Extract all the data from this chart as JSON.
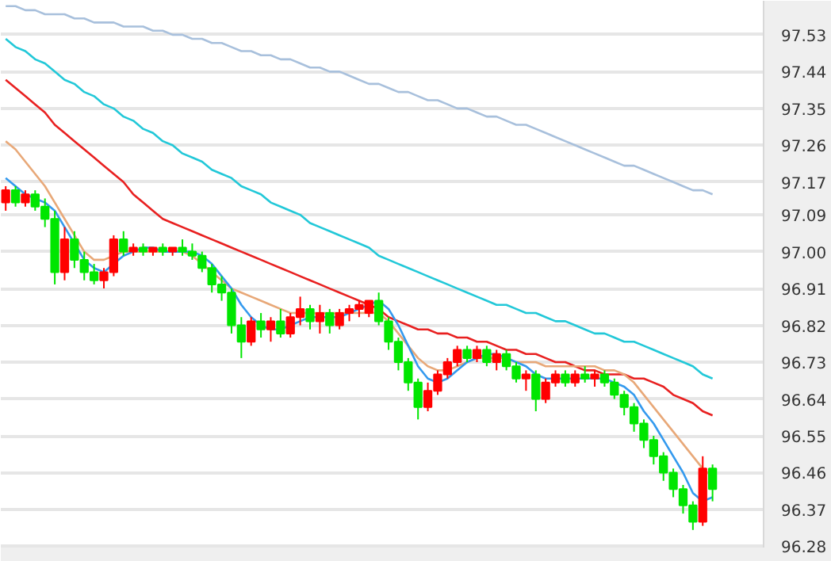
{
  "chart_data": {
    "type": "candlestick",
    "categories": [
      null,
      null,
      null,
      null,
      null,
      null,
      null,
      null,
      null,
      null,
      null,
      null,
      null,
      null,
      null,
      null,
      null,
      null,
      null,
      null,
      null,
      null,
      null,
      null,
      null,
      null,
      null,
      null,
      null,
      null,
      null,
      null,
      null,
      null,
      null,
      null,
      null,
      null,
      null,
      null,
      null,
      null,
      null,
      null,
      null,
      null,
      null,
      null,
      null,
      null,
      null,
      null,
      null,
      null,
      null,
      null,
      null,
      null,
      null,
      null,
      null,
      null,
      null,
      null,
      null,
      null,
      null,
      null,
      null,
      null,
      null,
      null,
      null
    ],
    "ohlc": [
      [
        97.12,
        97.16,
        97.1,
        97.15
      ],
      [
        97.15,
        97.16,
        97.11,
        97.12
      ],
      [
        97.12,
        97.15,
        97.11,
        97.14
      ],
      [
        97.14,
        97.15,
        97.1,
        97.11
      ],
      [
        97.11,
        97.13,
        97.06,
        97.08
      ],
      [
        97.08,
        97.1,
        96.92,
        96.95
      ],
      [
        96.95,
        97.06,
        96.93,
        97.03
      ],
      [
        97.03,
        97.05,
        96.96,
        96.98
      ],
      [
        96.98,
        97.0,
        96.93,
        96.95
      ],
      [
        96.95,
        96.97,
        96.92,
        96.93
      ],
      [
        96.93,
        96.96,
        96.91,
        96.95
      ],
      [
        96.95,
        97.04,
        96.94,
        97.03
      ],
      [
        97.03,
        97.05,
        96.99,
        97.0
      ],
      [
        97.0,
        97.02,
        96.99,
        97.01
      ],
      [
        97.01,
        97.02,
        96.99,
        97.0
      ],
      [
        97.0,
        97.01,
        96.99,
        97.01
      ],
      [
        97.01,
        97.02,
        96.99,
        97.0
      ],
      [
        97.0,
        97.01,
        96.99,
        97.01
      ],
      [
        97.01,
        97.03,
        96.99,
        97.0
      ],
      [
        97.0,
        97.02,
        96.98,
        96.99
      ],
      [
        96.99,
        97.0,
        96.95,
        96.96
      ],
      [
        96.96,
        96.97,
        96.9,
        96.92
      ],
      [
        96.92,
        96.94,
        96.88,
        96.9
      ],
      [
        96.9,
        96.91,
        96.8,
        96.82
      ],
      [
        96.82,
        96.84,
        96.74,
        96.78
      ],
      [
        96.78,
        96.84,
        96.77,
        96.83
      ],
      [
        96.83,
        96.85,
        96.79,
        96.81
      ],
      [
        96.81,
        96.84,
        96.78,
        96.83
      ],
      [
        96.83,
        96.86,
        96.79,
        96.8
      ],
      [
        96.8,
        96.85,
        96.79,
        96.84
      ],
      [
        96.84,
        96.89,
        96.82,
        96.86
      ],
      [
        96.86,
        96.87,
        96.81,
        96.83
      ],
      [
        96.83,
        96.87,
        96.8,
        96.85
      ],
      [
        96.85,
        96.86,
        96.8,
        96.82
      ],
      [
        96.82,
        96.86,
        96.81,
        96.85
      ],
      [
        96.85,
        96.87,
        96.83,
        96.86
      ],
      [
        96.86,
        96.88,
        96.84,
        96.87
      ],
      [
        96.85,
        96.88,
        96.84,
        96.88
      ],
      [
        96.88,
        96.9,
        96.82,
        96.83
      ],
      [
        96.83,
        96.84,
        96.76,
        96.78
      ],
      [
        96.78,
        96.79,
        96.71,
        96.73
      ],
      [
        96.73,
        96.74,
        96.66,
        96.68
      ],
      [
        96.68,
        96.69,
        96.59,
        96.62
      ],
      [
        96.62,
        96.68,
        96.61,
        96.66
      ],
      [
        96.66,
        96.71,
        96.65,
        96.7
      ],
      [
        96.7,
        96.74,
        96.69,
        96.73
      ],
      [
        96.73,
        96.77,
        96.72,
        96.76
      ],
      [
        96.76,
        96.77,
        96.73,
        96.74
      ],
      [
        96.74,
        96.77,
        96.73,
        96.76
      ],
      [
        96.76,
        96.77,
        96.72,
        96.73
      ],
      [
        96.73,
        96.76,
        96.71,
        96.75
      ],
      [
        96.75,
        96.76,
        96.71,
        96.72
      ],
      [
        96.72,
        96.73,
        96.68,
        96.69
      ],
      [
        96.69,
        96.71,
        96.66,
        96.7
      ],
      [
        96.7,
        96.71,
        96.61,
        96.64
      ],
      [
        96.64,
        96.69,
        96.63,
        96.68
      ],
      [
        96.68,
        96.71,
        96.67,
        96.7
      ],
      [
        96.7,
        96.71,
        96.67,
        96.68
      ],
      [
        96.68,
        96.71,
        96.67,
        96.7
      ],
      [
        96.7,
        96.72,
        96.68,
        96.69
      ],
      [
        96.69,
        96.71,
        96.67,
        96.7
      ],
      [
        96.7,
        96.71,
        96.67,
        96.68
      ],
      [
        96.68,
        96.69,
        96.64,
        96.65
      ],
      [
        96.65,
        96.66,
        96.6,
        96.62
      ],
      [
        96.62,
        96.63,
        96.56,
        96.58
      ],
      [
        96.58,
        96.59,
        96.52,
        96.54
      ],
      [
        96.54,
        96.55,
        96.48,
        96.5
      ],
      [
        96.5,
        96.51,
        96.44,
        96.46
      ],
      [
        96.46,
        96.47,
        96.4,
        96.42
      ],
      [
        96.42,
        96.43,
        96.36,
        96.38
      ],
      [
        96.38,
        96.39,
        96.32,
        96.34
      ],
      [
        96.34,
        96.5,
        96.33,
        96.47
      ],
      [
        96.47,
        96.48,
        96.39,
        96.42
      ]
    ],
    "colors": [
      "#ff0000",
      "#00e600",
      "#ff0000",
      "#00e600",
      "#00e600",
      "#00e600",
      "#ff0000",
      "#00e600",
      "#00e600",
      "#00e600",
      "#ff0000",
      "#ff0000",
      "#00e600",
      "#ff0000",
      "#00e600",
      "#ff0000",
      "#00e600",
      "#ff0000",
      "#00e600",
      "#00e600",
      "#00e600",
      "#00e600",
      "#00e600",
      "#00e600",
      "#00e600",
      "#ff0000",
      "#00e600",
      "#ff0000",
      "#00e600",
      "#ff0000",
      "#ff0000",
      "#00e600",
      "#ff0000",
      "#00e600",
      "#ff0000",
      "#ff0000",
      "#ff0000",
      "#ff0000",
      "#00e600",
      "#00e600",
      "#00e600",
      "#00e600",
      "#00e600",
      "#ff0000",
      "#ff0000",
      "#ff0000",
      "#ff0000",
      "#00e600",
      "#ff0000",
      "#00e600",
      "#ff0000",
      "#00e600",
      "#00e600",
      "#ff0000",
      "#00e600",
      "#ff0000",
      "#ff0000",
      "#00e600",
      "#ff0000",
      "#00e600",
      "#ff0000",
      "#00e600",
      "#00e600",
      "#00e600",
      "#00e600",
      "#00e600",
      "#00e600",
      "#00e600",
      "#00e600",
      "#00e600",
      "#00e600",
      "#ff0000",
      "#00e600"
    ],
    "series": [
      {
        "type": "line",
        "color": "#a8c0dc",
        "values": [
          97.6,
          97.6,
          97.59,
          97.59,
          97.58,
          97.58,
          97.58,
          97.57,
          97.57,
          97.56,
          97.56,
          97.56,
          97.55,
          97.55,
          97.55,
          97.54,
          97.54,
          97.53,
          97.53,
          97.52,
          97.52,
          97.51,
          97.51,
          97.5,
          97.49,
          97.49,
          97.48,
          97.48,
          97.47,
          97.47,
          97.46,
          97.45,
          97.45,
          97.44,
          97.44,
          97.43,
          97.42,
          97.41,
          97.41,
          97.4,
          97.39,
          97.39,
          97.38,
          97.37,
          97.37,
          97.36,
          97.35,
          97.35,
          97.34,
          97.33,
          97.33,
          97.32,
          97.31,
          97.31,
          97.3,
          97.29,
          97.28,
          97.27,
          97.26,
          97.25,
          97.24,
          97.23,
          97.22,
          97.21,
          97.21,
          97.2,
          97.19,
          97.18,
          97.17,
          97.16,
          97.15,
          97.15,
          97.14
        ]
      },
      {
        "type": "line",
        "color": "#22c8d8",
        "values": [
          97.52,
          97.5,
          97.49,
          97.47,
          97.46,
          97.44,
          97.42,
          97.41,
          97.39,
          97.38,
          97.36,
          97.35,
          97.33,
          97.32,
          97.3,
          97.29,
          97.27,
          97.26,
          97.24,
          97.23,
          97.22,
          97.2,
          97.19,
          97.18,
          97.16,
          97.15,
          97.14,
          97.12,
          97.11,
          97.1,
          97.09,
          97.07,
          97.06,
          97.05,
          97.04,
          97.03,
          97.02,
          97.01,
          96.99,
          96.98,
          96.97,
          96.96,
          96.95,
          96.94,
          96.93,
          96.92,
          96.91,
          96.9,
          96.89,
          96.88,
          96.87,
          96.87,
          96.86,
          96.85,
          96.85,
          96.84,
          96.83,
          96.83,
          96.82,
          96.81,
          96.8,
          96.8,
          96.79,
          96.78,
          96.78,
          96.77,
          96.76,
          96.75,
          96.74,
          96.73,
          96.72,
          96.7,
          96.69
        ]
      },
      {
        "type": "line",
        "color": "#e82020",
        "values": [
          97.42,
          97.4,
          97.38,
          97.36,
          97.34,
          97.31,
          97.29,
          97.27,
          97.25,
          97.23,
          97.21,
          97.19,
          97.17,
          97.14,
          97.12,
          97.1,
          97.08,
          97.07,
          97.06,
          97.05,
          97.04,
          97.03,
          97.02,
          97.01,
          97.0,
          96.99,
          96.98,
          96.97,
          96.96,
          96.95,
          96.94,
          96.93,
          96.92,
          96.91,
          96.9,
          96.89,
          96.88,
          96.87,
          96.86,
          96.84,
          96.83,
          96.82,
          96.81,
          96.81,
          96.8,
          96.8,
          96.79,
          96.79,
          96.78,
          96.78,
          96.77,
          96.76,
          96.76,
          96.75,
          96.75,
          96.74,
          96.73,
          96.73,
          96.72,
          96.71,
          96.71,
          96.7,
          96.7,
          96.7,
          96.69,
          96.69,
          96.68,
          96.67,
          96.65,
          96.64,
          96.63,
          96.61,
          96.6
        ]
      },
      {
        "type": "line",
        "color": "#e8a878",
        "values": [
          97.27,
          97.25,
          97.22,
          97.19,
          97.16,
          97.12,
          97.08,
          97.04,
          97.0,
          96.98,
          96.98,
          96.99,
          97.0,
          97.0,
          97.0,
          97.0,
          97.0,
          97.0,
          97.0,
          96.99,
          96.97,
          96.95,
          96.93,
          96.91,
          96.9,
          96.89,
          96.88,
          96.87,
          96.86,
          96.85,
          96.85,
          96.85,
          96.85,
          96.85,
          96.85,
          96.85,
          96.85,
          96.85,
          96.85,
          96.83,
          96.8,
          96.77,
          96.74,
          96.72,
          96.71,
          96.71,
          96.72,
          96.73,
          96.74,
          96.74,
          96.74,
          96.74,
          96.73,
          96.73,
          96.73,
          96.72,
          96.72,
          96.72,
          96.72,
          96.72,
          96.72,
          96.71,
          96.71,
          96.7,
          96.68,
          96.65,
          96.62,
          96.59,
          96.56,
          96.53,
          96.5,
          96.47,
          96.45
        ]
      },
      {
        "type": "line",
        "color": "#3399ee",
        "values": [
          97.18,
          97.16,
          97.14,
          97.13,
          97.12,
          97.1,
          97.06,
          97.02,
          96.98,
          96.96,
          96.95,
          96.97,
          96.99,
          97.0,
          97.01,
          97.01,
          97.0,
          97.0,
          97.0,
          97.0,
          96.99,
          96.97,
          96.94,
          96.91,
          96.87,
          96.84,
          96.82,
          96.81,
          96.81,
          96.82,
          96.83,
          96.84,
          96.84,
          96.84,
          96.84,
          96.85,
          96.86,
          96.87,
          96.88,
          96.86,
          96.82,
          96.77,
          96.72,
          96.69,
          96.68,
          96.69,
          96.71,
          96.73,
          96.74,
          96.75,
          96.75,
          96.74,
          96.73,
          96.72,
          96.7,
          96.69,
          96.69,
          96.69,
          96.69,
          96.69,
          96.69,
          96.69,
          96.68,
          96.67,
          96.65,
          96.61,
          96.58,
          96.54,
          96.5,
          96.46,
          96.41,
          96.39,
          96.4
        ]
      }
    ],
    "ylim": [
      96.277,
      97.613
    ],
    "yticks": [
      97.53,
      97.44,
      97.35,
      97.26,
      97.17,
      97.09,
      {
        "value": 97,
        "label": "97.00"
      },
      96.91,
      96.82,
      96.73,
      96.64,
      96.55,
      96.46,
      96.37,
      96.28
    ],
    "grid": "y",
    "tick_labels": "y"
  }
}
